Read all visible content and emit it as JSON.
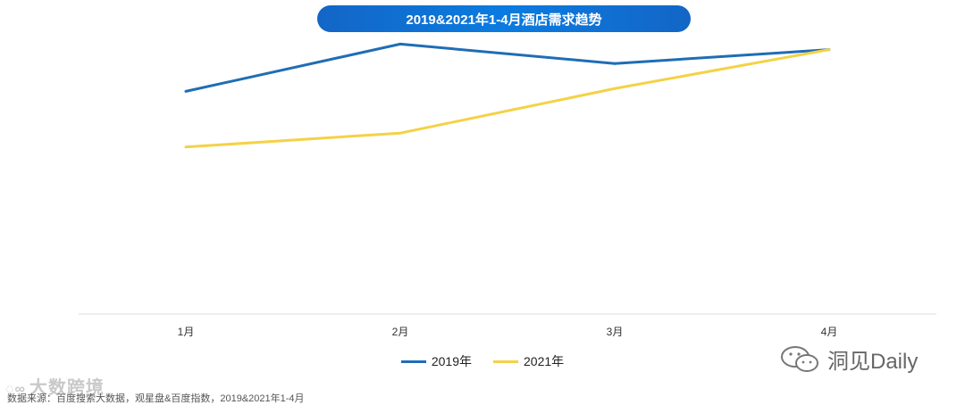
{
  "chart_data": {
    "type": "line",
    "title": "2019&2021年1-4月酒店需求趋势",
    "categories": [
      "1月",
      "2月",
      "3月",
      "4月"
    ],
    "ylim": [
      0,
      100
    ],
    "series": [
      {
        "name": "2019年",
        "values": [
          80,
          97,
          90,
          95
        ],
        "color": "#1f6db5"
      },
      {
        "name": "2021年",
        "values": [
          60,
          65,
          81,
          95
        ],
        "color": "#f4d247"
      }
    ],
    "xlabel": "",
    "ylabel": "",
    "legend": "bottom"
  },
  "footer": {
    "source": "数据来源：百度搜索大数据，观星盘&百度指数，2019&2021年1-4月",
    "watermark_left": "大数跨境",
    "watermark_right": "洞见Daily"
  },
  "colors": {
    "axis": "#dddddd",
    "title_bg": "#0b6fd1"
  }
}
